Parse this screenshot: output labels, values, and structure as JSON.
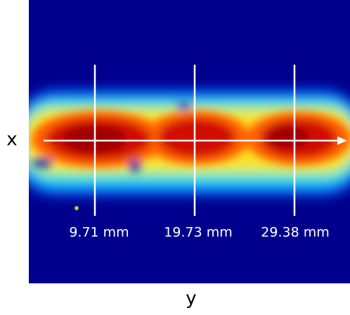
{
  "axes": {
    "x_label": "x",
    "y_label": "y"
  },
  "markers": [
    {
      "label": "9.71 mm"
    },
    {
      "label": "19.73 mm"
    },
    {
      "label": "29.38 mm"
    }
  ]
}
